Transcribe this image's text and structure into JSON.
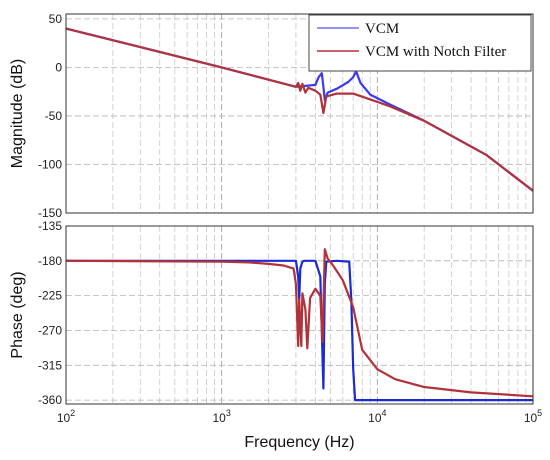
{
  "chart_data": {
    "type": "line",
    "x_scale": "log",
    "xlim": [
      100,
      100000
    ],
    "xlabel": "Frequency  (Hz)",
    "x_ticks": [
      100,
      1000,
      10000,
      100000
    ],
    "x_tick_labels": [
      {
        "base": "10",
        "exp": "2"
      },
      {
        "base": "10",
        "exp": "3"
      },
      {
        "base": "10",
        "exp": "4"
      },
      {
        "base": "10",
        "exp": "5"
      }
    ],
    "grid": true,
    "legend": {
      "placement": "top-right",
      "entries": [
        {
          "name": "VCM",
          "color": "#6e6ef0"
        },
        {
          "name": "VCM with Notch Filter",
          "color": "#b2323a"
        }
      ]
    },
    "subplots": [
      {
        "ylabel": "Magnitude (dB)",
        "ylim": [
          -150,
          55
        ],
        "y_ticks": [
          50,
          0,
          -50,
          -100,
          -150
        ],
        "y_tick_labels": [
          "50",
          "0",
          "-50",
          "-100",
          "-150"
        ],
        "series": [
          {
            "name": "VCM",
            "color": "#3a3af0",
            "x": [
              100,
              1000,
              3000,
              4000,
              4200,
              4400,
              4500,
              4600,
              4800,
              5500,
              6500,
              7000,
              7300,
              7800,
              9000,
              12000,
              20000,
              50000,
              100000
            ],
            "y": [
              40,
              0,
              -20,
              -18,
              -10,
              -6,
              -20,
              -34,
              -26,
              -22,
              -15,
              -10,
              -4,
              -16,
              -28,
              -38,
              -55,
              -90,
              -127
            ]
          },
          {
            "name": "VCM with Notch Filter",
            "color": "#b2323a",
            "x": [
              100,
              1000,
              3000,
              3100,
              3200,
              3300,
              3450,
              3600,
              4000,
              4300,
              4500,
              4700,
              5500,
              7000,
              9000,
              12000,
              20000,
              50000,
              100000
            ],
            "y": [
              40,
              0,
              -20,
              -16,
              -24,
              -17,
              -26,
              -21,
              -24,
              -28,
              -47,
              -30,
              -27,
              -27,
              -33,
              -40,
              -55,
              -90,
              -127
            ]
          }
        ]
      },
      {
        "ylabel": "Phase (deg)",
        "ylim": [
          -365,
          -135
        ],
        "y_ticks": [
          -135,
          -180,
          -225,
          -270,
          -315,
          -360
        ],
        "y_tick_labels": [
          "-135",
          "-180",
          "-225",
          "-270",
          "-315",
          "-360"
        ],
        "series": [
          {
            "name": "VCM",
            "color": "#1a2bd0",
            "x": [
              100,
              1000,
              3000,
              3100,
              3150,
              3200,
              3300,
              3400,
              3600,
              4000,
              4300,
              4500,
              4600,
              4700,
              5500,
              6600,
              6800,
              7000,
              7200,
              8000,
              10000,
              30000,
              100000
            ],
            "y": [
              -180,
              -180,
              -180,
              -200,
              -230,
              -190,
              -181,
              -180,
              -180,
              -180,
              -200,
              -345,
              -210,
              -181,
              -180,
              -181,
              -230,
              -320,
              -360,
              -360,
              -360,
              -360,
              -360
            ]
          },
          {
            "name": "VCM with Notch Filter",
            "color": "#b2323a",
            "x": [
              100,
              1000,
              1500,
              2000,
              2500,
              2900,
              3000,
              3100,
              3150,
              3250,
              3300,
              3450,
              3550,
              3700,
              4000,
              4300,
              4450,
              4600,
              4800,
              5200,
              6000,
              7000,
              8000,
              10000,
              13000,
              20000,
              40000,
              100000
            ],
            "y": [
              -180,
              -181,
              -182,
              -184,
              -186,
              -190,
              -210,
              -290,
              -230,
              -290,
              -222,
              -243,
              -293,
              -228,
              -216,
              -225,
              -285,
              -165,
              -177,
              -186,
              -205,
              -240,
              -295,
              -320,
              -333,
              -343,
              -350,
              -355
            ]
          }
        ]
      }
    ]
  }
}
